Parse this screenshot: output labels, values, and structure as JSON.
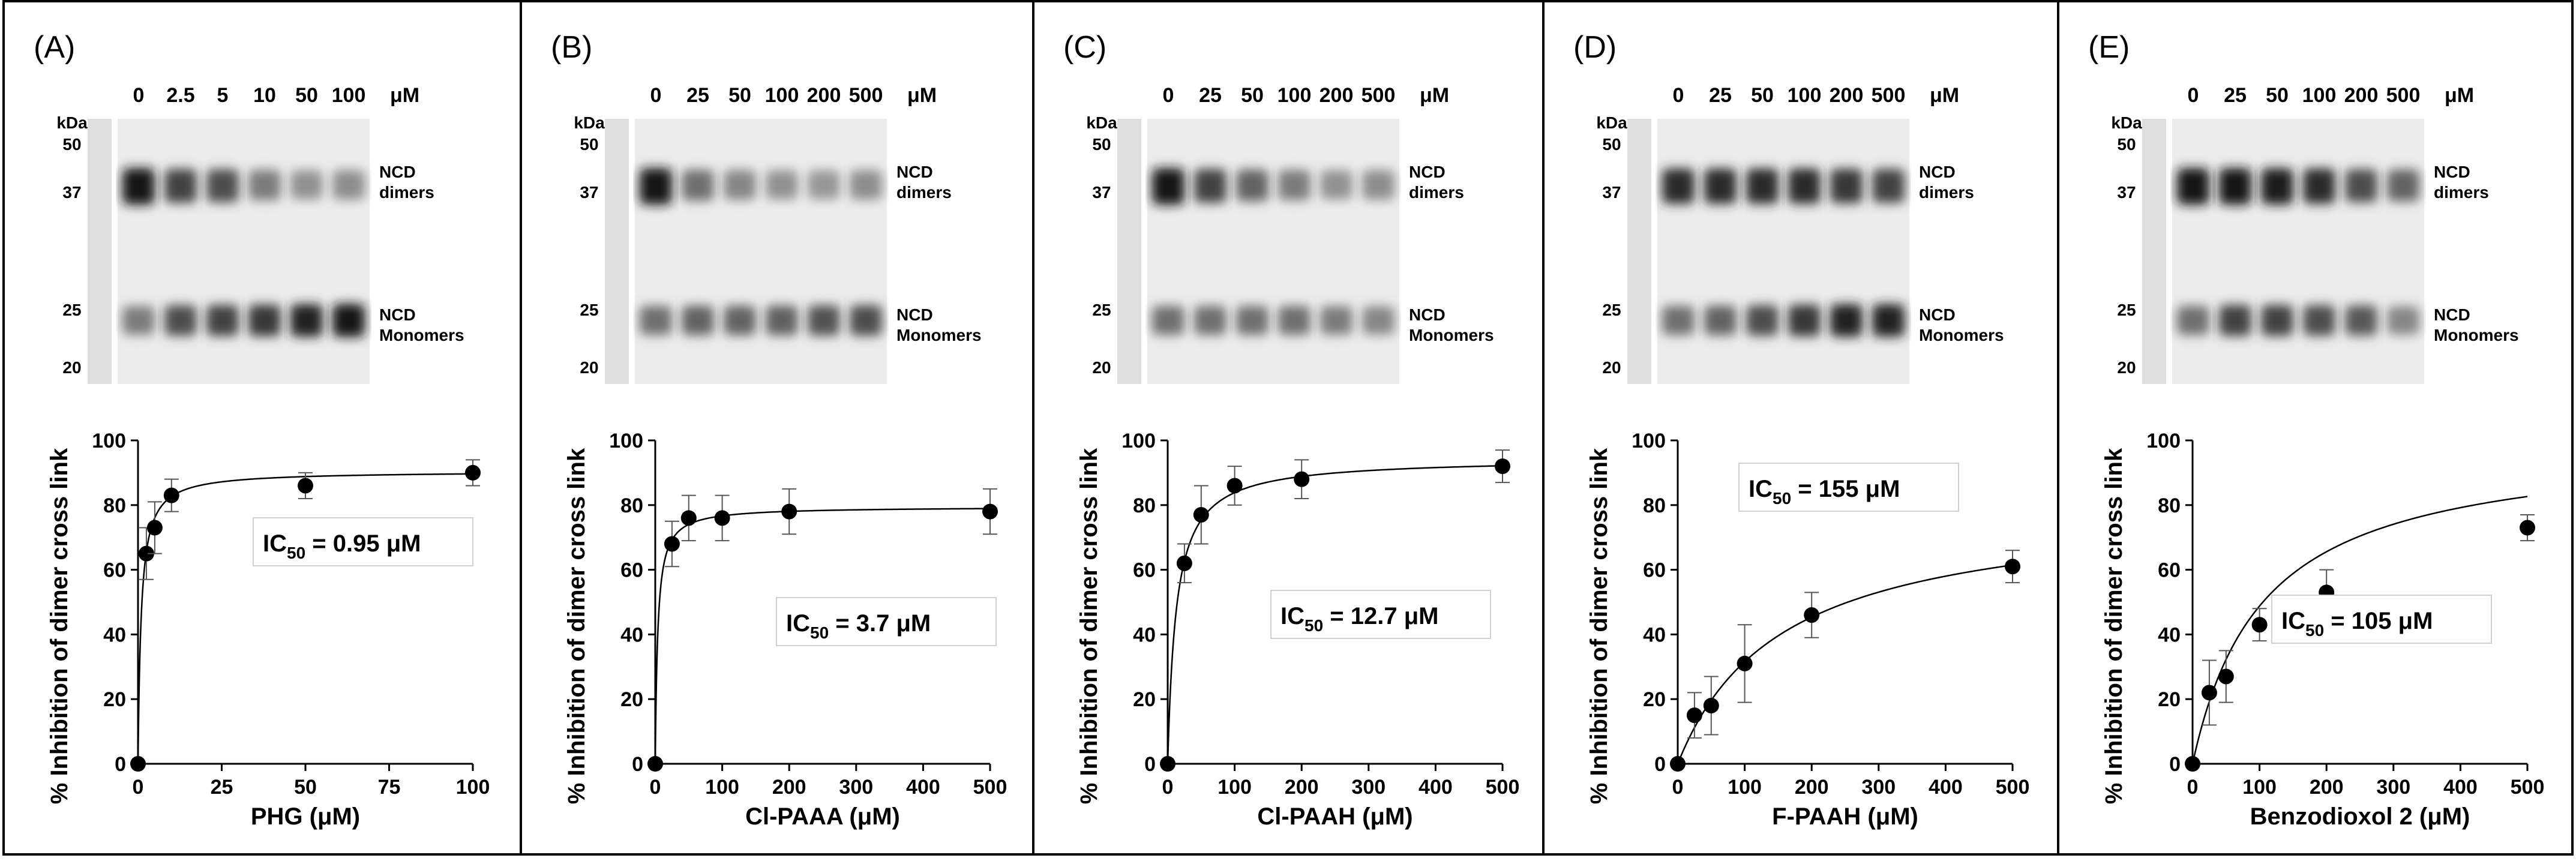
{
  "figure": {
    "kda_label": "kDa",
    "marker_labels": [
      "50",
      "37",
      "25",
      "20"
    ],
    "band_labels": {
      "dimers": [
        "NCD",
        "dimers"
      ],
      "monomers": [
        "NCD",
        "Monomers"
      ]
    },
    "unit": "μM"
  },
  "chart_data": [
    {
      "type": "scatter",
      "panel_label": "(A)",
      "title": "(A)",
      "gel_lanes": [
        "0",
        "2.5",
        "5",
        "10",
        "50",
        "100"
      ],
      "dimer_intensity": [
        0.95,
        0.75,
        0.7,
        0.5,
        0.4,
        0.42
      ],
      "monomer_intensity": [
        0.5,
        0.7,
        0.75,
        0.8,
        0.9,
        0.95
      ],
      "xlabel": "PHG (μM)",
      "ylabel": "% Inhibition of dimer cross link",
      "xlim": [
        0,
        100
      ],
      "ylim": [
        0,
        100
      ],
      "xticks": [
        0,
        25,
        50,
        75,
        100
      ],
      "yticks": [
        0,
        20,
        40,
        60,
        80,
        100
      ],
      "x": [
        0,
        2.5,
        5,
        10,
        50,
        100
      ],
      "y": [
        0,
        65,
        73,
        83,
        86,
        90
      ],
      "err": [
        0,
        8,
        8,
        5,
        4,
        4
      ],
      "ic50": 0.95,
      "ic50_prefix": "IC",
      "ic50_sub": "50",
      "ic50_value": " = 0.95 μM",
      "fit": {
        "top": 90.5
      }
    },
    {
      "type": "scatter",
      "panel_label": "(B)",
      "title": "(B)",
      "gel_lanes": [
        "0",
        "25",
        "50",
        "100",
        "200",
        "500"
      ],
      "dimer_intensity": [
        0.95,
        0.55,
        0.45,
        0.4,
        0.38,
        0.42
      ],
      "monomer_intensity": [
        0.55,
        0.6,
        0.6,
        0.62,
        0.68,
        0.7
      ],
      "xlabel": "Cl-PAAA (μM)",
      "ylabel": "% Inhibition of dimer cross link",
      "xlim": [
        0,
        500
      ],
      "ylim": [
        0,
        100
      ],
      "xticks": [
        0,
        100,
        200,
        300,
        400,
        500
      ],
      "yticks": [
        0,
        20,
        40,
        60,
        80,
        100
      ],
      "x": [
        0,
        25,
        50,
        100,
        200,
        500
      ],
      "y": [
        0,
        68,
        76,
        76,
        78,
        78
      ],
      "err": [
        0,
        7,
        7,
        7,
        7,
        7
      ],
      "ic50": 3.7,
      "ic50_prefix": "IC",
      "ic50_sub": "50",
      "ic50_value": " = 3.7 μM",
      "fit": {
        "top": 79.5
      }
    },
    {
      "type": "scatter",
      "panel_label": "(C)",
      "title": "(C)",
      "gel_lanes": [
        "0",
        "25",
        "50",
        "100",
        "200",
        "500"
      ],
      "dimer_intensity": [
        0.95,
        0.75,
        0.6,
        0.5,
        0.4,
        0.42
      ],
      "monomer_intensity": [
        0.55,
        0.55,
        0.55,
        0.55,
        0.5,
        0.45
      ],
      "xlabel": "Cl-PAAH (μM)",
      "ylabel": "% Inhibition of dimer cross link",
      "xlim": [
        0,
        500
      ],
      "ylim": [
        0,
        100
      ],
      "xticks": [
        0,
        100,
        200,
        300,
        400,
        500
      ],
      "yticks": [
        0,
        20,
        40,
        60,
        80,
        100
      ],
      "x": [
        0,
        25,
        50,
        100,
        200,
        500
      ],
      "y": [
        0,
        62,
        77,
        86,
        88,
        92
      ],
      "err": [
        0,
        6,
        9,
        6,
        6,
        5
      ],
      "ic50": 12.7,
      "ic50_prefix": "IC",
      "ic50_sub": "50",
      "ic50_value": " = 12.7 μM",
      "fit": {
        "top": 94.5
      }
    },
    {
      "type": "scatter",
      "panel_label": "(D)",
      "title": "(D)",
      "gel_lanes": [
        "0",
        "25",
        "50",
        "100",
        "200",
        "500"
      ],
      "dimer_intensity": [
        0.85,
        0.85,
        0.85,
        0.85,
        0.8,
        0.75
      ],
      "monomer_intensity": [
        0.55,
        0.6,
        0.7,
        0.8,
        0.9,
        0.9
      ],
      "xlabel": "F-PAAH (μM)",
      "ylabel": "% Inhibition of dimer cross link",
      "xlim": [
        0,
        500
      ],
      "ylim": [
        0,
        100
      ],
      "xticks": [
        0,
        100,
        200,
        300,
        400,
        500
      ],
      "yticks": [
        0,
        20,
        40,
        60,
        80,
        100
      ],
      "x": [
        0,
        25,
        50,
        100,
        200,
        500
      ],
      "y": [
        0,
        15,
        18,
        31,
        46,
        61
      ],
      "err": [
        0,
        7,
        9,
        12,
        7,
        5
      ],
      "ic50": 155,
      "ic50_prefix": "IC",
      "ic50_sub": "50",
      "ic50_value": " = 155 μM",
      "fit": {
        "top": 80.5
      }
    },
    {
      "type": "scatter",
      "panel_label": "(E)",
      "title": "(E)",
      "gel_lanes": [
        "0",
        "25",
        "50",
        "100",
        "200",
        "500"
      ],
      "dimer_intensity": [
        0.95,
        0.95,
        0.92,
        0.85,
        0.7,
        0.6
      ],
      "monomer_intensity": [
        0.55,
        0.75,
        0.75,
        0.7,
        0.65,
        0.45
      ],
      "xlabel": "Benzodioxol 2 (μM)",
      "ylabel": "% Inhibition of dimer cross link",
      "xlim": [
        0,
        500
      ],
      "ylim": [
        0,
        100
      ],
      "xticks": [
        0,
        100,
        200,
        300,
        400,
        500
      ],
      "yticks": [
        0,
        20,
        40,
        60,
        80,
        100
      ],
      "x": [
        0,
        25,
        50,
        100,
        200,
        500
      ],
      "y": [
        0,
        22,
        27,
        43,
        53,
        73
      ],
      "err": [
        0,
        10,
        8,
        5,
        7,
        4
      ],
      "ic50": 105,
      "ic50_prefix": "IC",
      "ic50_sub": "50",
      "ic50_value": " = 105 μM",
      "fit": {
        "top": 100
      }
    }
  ]
}
